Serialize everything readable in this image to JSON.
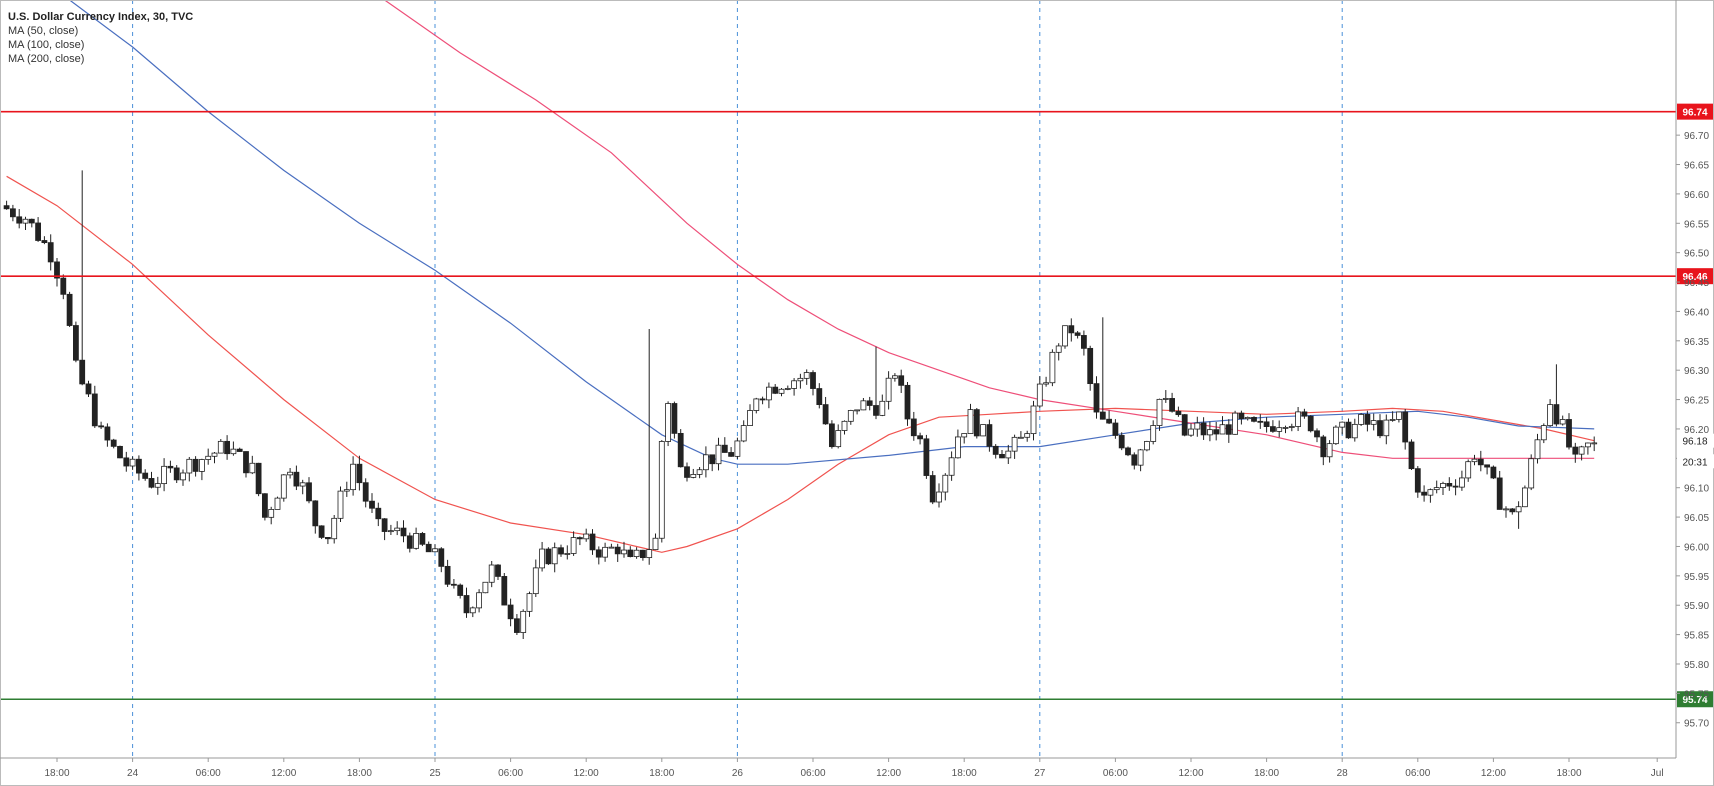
{
  "chart_data": {
    "type": "candlestick",
    "title": "U.S. Dollar Currency Index, 30, TVC",
    "indicators": [
      {
        "label": "MA (50, close)",
        "color": "#f0534f"
      },
      {
        "label": "MA (100, close)",
        "color": "#4a6fc0"
      },
      {
        "label": "MA (200, close)",
        "color": "#ee4f79"
      }
    ],
    "ylim": [
      95.64,
      96.93
    ],
    "y_ticks": [
      96.7,
      96.65,
      96.6,
      96.55,
      96.5,
      96.45,
      96.4,
      96.35,
      96.3,
      96.25,
      96.2,
      96.15,
      96.1,
      96.05,
      96.0,
      95.95,
      95.9,
      95.85,
      95.8,
      95.75,
      95.7
    ],
    "y_tick_labels": [
      "96.70",
      "96.65",
      "96.60",
      "96.55",
      "96.50",
      "96.45",
      "96.40",
      "96.35",
      "96.30",
      "96.25",
      "96.20",
      "96.15",
      "96.10",
      "96.05",
      "96.00",
      "95.95",
      "95.90",
      "95.85",
      "95.80",
      "95.75",
      "95.70"
    ],
    "x_labels": [
      {
        "t": 0,
        "label": "18:00"
      },
      {
        "t": 6,
        "label": "24"
      },
      {
        "t": 12,
        "label": "06:00"
      },
      {
        "t": 18,
        "label": "12:00"
      },
      {
        "t": 24,
        "label": "18:00"
      },
      {
        "t": 30,
        "label": "25"
      },
      {
        "t": 36,
        "label": "06:00"
      },
      {
        "t": 42,
        "label": "12:00"
      },
      {
        "t": 48,
        "label": "18:00"
      },
      {
        "t": 54,
        "label": "26"
      },
      {
        "t": 60,
        "label": "06:00"
      },
      {
        "t": 66,
        "label": "12:00"
      },
      {
        "t": 72,
        "label": "18:00"
      },
      {
        "t": 78,
        "label": "27"
      },
      {
        "t": 84,
        "label": "06:00"
      },
      {
        "t": 90,
        "label": "12:00"
      },
      {
        "t": 96,
        "label": "18:00"
      },
      {
        "t": 102,
        "label": "28"
      },
      {
        "t": 108,
        "label": "06:00"
      },
      {
        "t": 114,
        "label": "12:00"
      },
      {
        "t": 120,
        "label": "18:00"
      },
      {
        "t": 127,
        "label": "Jul"
      }
    ],
    "day_separators_t": [
      6,
      30,
      54,
      78,
      102
    ],
    "horizontal_lines": [
      {
        "value": 96.74,
        "label": "96.74",
        "color": "#e8141c"
      },
      {
        "value": 96.46,
        "label": "96.46",
        "color": "#e8141c"
      },
      {
        "value": 95.74,
        "label": "95.74",
        "color": "#2e7d32"
      }
    ],
    "price_labels": [
      {
        "value": 96.18,
        "label": "96.18",
        "bg": "#ffffff",
        "fg": "#222222"
      },
      {
        "value": 96.145,
        "label": "20:31",
        "bg": "#ffffff",
        "fg": "#222222"
      }
    ],
    "keypoints": [
      [
        -4,
        96.58
      ],
      [
        -2,
        96.56
      ],
      [
        0,
        96.5
      ],
      [
        1,
        96.44
      ],
      [
        2,
        96.3
      ],
      [
        3,
        96.25
      ],
      [
        4,
        96.19
      ],
      [
        6,
        96.14
      ],
      [
        8,
        96.11
      ],
      [
        10,
        96.13
      ],
      [
        12,
        96.15
      ],
      [
        14,
        96.17
      ],
      [
        16,
        96.13
      ],
      [
        17,
        96.05
      ],
      [
        19,
        96.14
      ],
      [
        20,
        96.1
      ],
      [
        21,
        96.04
      ],
      [
        22,
        96.02
      ],
      [
        24,
        96.14
      ],
      [
        25,
        96.08
      ],
      [
        26,
        96.03
      ],
      [
        28,
        96.02
      ],
      [
        30,
        95.99
      ],
      [
        31,
        95.97
      ],
      [
        32,
        95.92
      ],
      [
        33,
        95.89
      ],
      [
        34,
        95.93
      ],
      [
        35,
        95.96
      ],
      [
        36,
        95.91
      ],
      [
        37,
        95.87
      ],
      [
        38,
        95.92
      ],
      [
        39,
        95.98
      ],
      [
        40,
        95.99
      ],
      [
        42,
        96.01
      ],
      [
        44,
        95.99
      ],
      [
        45,
        96.0
      ],
      [
        46,
        95.97
      ],
      [
        47,
        95.99
      ],
      [
        48,
        96.01
      ],
      [
        48.5,
        96.18
      ],
      [
        49,
        96.25
      ],
      [
        50,
        96.13
      ],
      [
        52,
        96.15
      ],
      [
        54,
        96.16
      ],
      [
        55,
        96.19
      ],
      [
        56,
        96.26
      ],
      [
        58,
        96.28
      ],
      [
        60,
        96.29
      ],
      [
        61,
        96.25
      ],
      [
        62,
        96.17
      ],
      [
        64,
        96.24
      ],
      [
        66,
        96.24
      ],
      [
        67,
        96.3
      ],
      [
        68,
        96.22
      ],
      [
        69,
        96.18
      ],
      [
        70,
        96.09
      ],
      [
        71,
        96.13
      ],
      [
        72,
        96.19
      ],
      [
        73,
        96.22
      ],
      [
        74,
        96.19
      ],
      [
        75,
        96.17
      ],
      [
        76,
        96.16
      ],
      [
        77,
        96.18
      ],
      [
        78,
        96.23
      ],
      [
        79,
        96.29
      ],
      [
        80,
        96.35
      ],
      [
        81,
        96.37
      ],
      [
        82,
        96.33
      ],
      [
        83,
        96.22
      ],
      [
        84,
        96.2
      ],
      [
        85,
        96.18
      ],
      [
        86,
        96.15
      ],
      [
        87,
        96.19
      ],
      [
        88,
        96.25
      ],
      [
        89,
        96.23
      ],
      [
        90,
        96.19
      ],
      [
        91,
        96.2
      ],
      [
        92,
        96.19
      ],
      [
        94,
        96.21
      ],
      [
        96,
        96.2
      ],
      [
        98,
        96.22
      ],
      [
        100,
        96.21
      ],
      [
        101,
        96.17
      ],
      [
        102,
        96.19
      ],
      [
        104,
        96.21
      ],
      [
        106,
        96.2
      ],
      [
        107,
        96.22
      ],
      [
        108,
        96.13
      ],
      [
        109,
        96.08
      ],
      [
        110,
        96.1
      ],
      [
        112,
        96.12
      ],
      [
        113,
        96.16
      ],
      [
        114,
        96.12
      ],
      [
        115,
        96.08
      ],
      [
        116,
        96.05
      ],
      [
        117,
        96.1
      ],
      [
        118,
        96.18
      ],
      [
        119,
        96.25
      ],
      [
        120,
        96.2
      ],
      [
        121,
        96.14
      ],
      [
        122,
        96.17
      ]
    ],
    "wick_spikes": [
      [
        2,
        96.64
      ],
      [
        47,
        96.37
      ],
      [
        65,
        96.34
      ],
      [
        83,
        96.39
      ],
      [
        119,
        96.31
      ],
      [
        37,
        95.85
      ],
      [
        116,
        96.03
      ]
    ],
    "ma_paths": {
      "ma50": [
        [
          -4,
          96.63
        ],
        [
          0,
          96.58
        ],
        [
          6,
          96.48
        ],
        [
          12,
          96.36
        ],
        [
          18,
          96.25
        ],
        [
          24,
          96.15
        ],
        [
          30,
          96.08
        ],
        [
          36,
          96.04
        ],
        [
          42,
          96.02
        ],
        [
          46,
          96.0
        ],
        [
          48,
          95.99
        ],
        [
          50,
          96.0
        ],
        [
          54,
          96.03
        ],
        [
          58,
          96.08
        ],
        [
          62,
          96.14
        ],
        [
          66,
          96.19
        ],
        [
          70,
          96.22
        ],
        [
          74,
          96.225
        ],
        [
          78,
          96.23
        ],
        [
          84,
          96.235
        ],
        [
          90,
          96.23
        ],
        [
          96,
          96.225
        ],
        [
          102,
          96.23
        ],
        [
          106,
          96.235
        ],
        [
          110,
          96.23
        ],
        [
          114,
          96.215
        ],
        [
          118,
          96.2
        ],
        [
          122,
          96.18
        ]
      ],
      "ma100": [
        [
          1,
          96.93
        ],
        [
          6,
          96.85
        ],
        [
          12,
          96.74
        ],
        [
          18,
          96.64
        ],
        [
          24,
          96.55
        ],
        [
          30,
          96.47
        ],
        [
          36,
          96.38
        ],
        [
          42,
          96.28
        ],
        [
          48,
          96.19
        ],
        [
          52,
          96.15
        ],
        [
          54,
          96.14
        ],
        [
          58,
          96.14
        ],
        [
          66,
          96.155
        ],
        [
          72,
          96.17
        ],
        [
          78,
          96.17
        ],
        [
          84,
          96.19
        ],
        [
          90,
          96.21
        ],
        [
          96,
          96.22
        ],
        [
          102,
          96.225
        ],
        [
          108,
          96.23
        ],
        [
          112,
          96.22
        ],
        [
          116,
          96.205
        ],
        [
          122,
          96.2
        ]
      ],
      "ma200": [
        [
          26,
          96.93
        ],
        [
          32,
          96.84
        ],
        [
          38,
          96.76
        ],
        [
          44,
          96.67
        ],
        [
          50,
          96.55
        ],
        [
          54,
          96.48
        ],
        [
          58,
          96.42
        ],
        [
          62,
          96.37
        ],
        [
          66,
          96.33
        ],
        [
          70,
          96.3
        ],
        [
          74,
          96.27
        ],
        [
          78,
          96.25
        ],
        [
          84,
          96.23
        ],
        [
          90,
          96.21
        ],
        [
          96,
          96.19
        ],
        [
          102,
          96.16
        ],
        [
          106,
          96.15
        ],
        [
          110,
          96.15
        ],
        [
          114,
          96.15
        ],
        [
          118,
          96.15
        ],
        [
          122,
          96.15
        ]
      ]
    }
  }
}
